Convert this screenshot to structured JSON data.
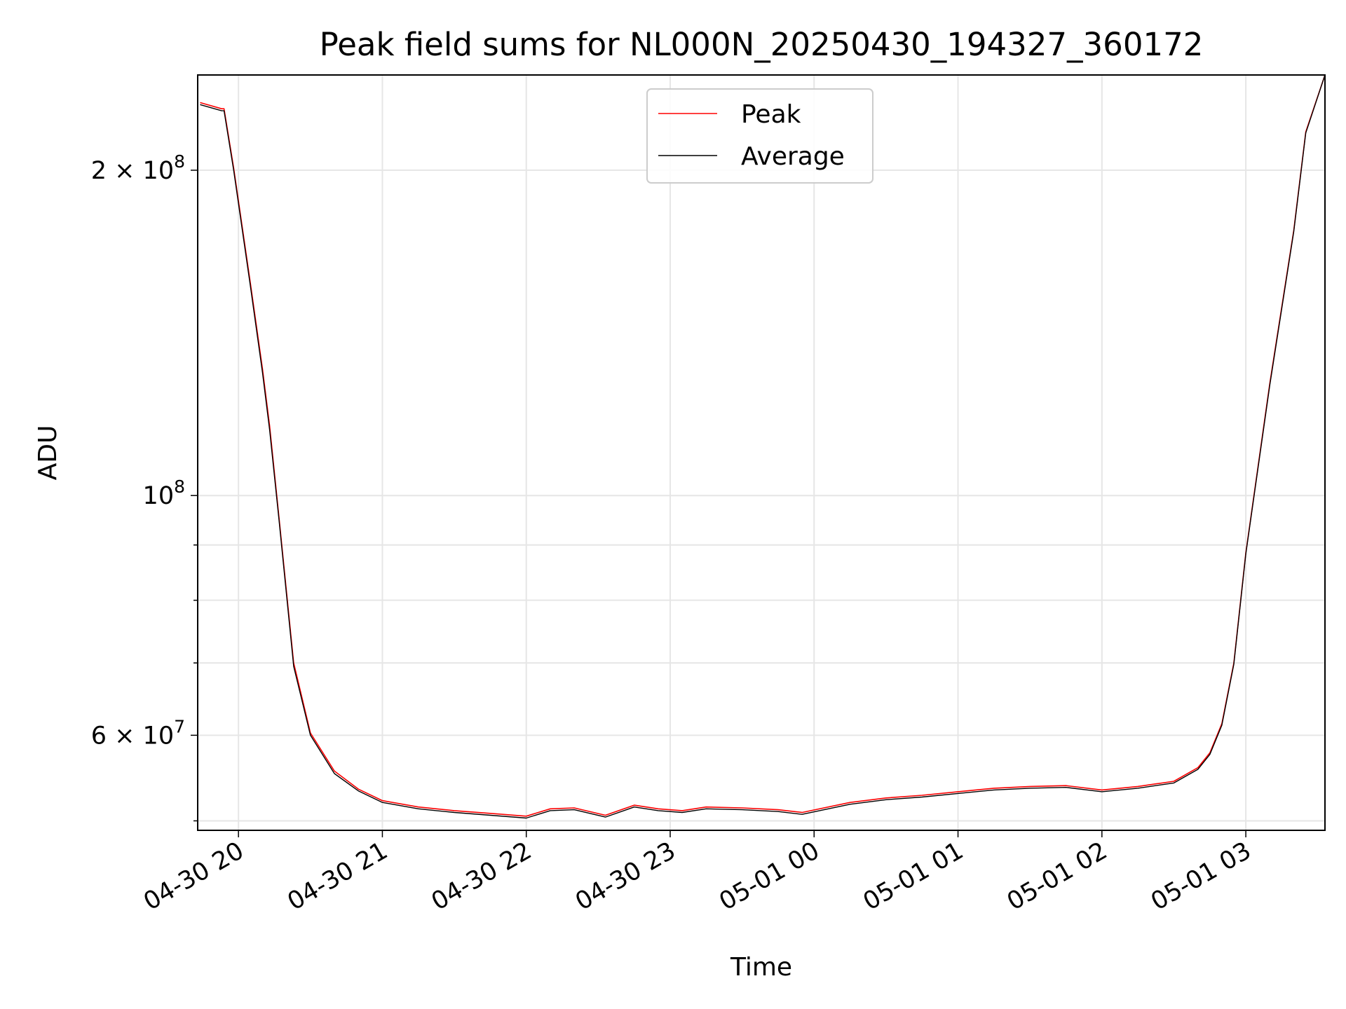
{
  "chart_data": {
    "type": "line",
    "title": "Peak field sums for NL000N_20250430_194327_360172",
    "xlabel": "Time",
    "ylabel": "ADU",
    "xlim": [
      "2025-04-30 19:43",
      "2025-05-01 03:33"
    ],
    "ylim": [
      49000000,
      245000000
    ],
    "yscale": "log",
    "grid": true,
    "legend_position": "top-center",
    "x_ticks": [
      "04-30 20",
      "04-30 21",
      "04-30 22",
      "04-30 23",
      "05-01 00",
      "05-01 01",
      "05-01 02",
      "05-01 03"
    ],
    "y_ticks": [
      {
        "value": 200000000,
        "mantissa": "2",
        "base": "10",
        "exp": "8"
      },
      {
        "value": 100000000,
        "mantissa": "",
        "base": "10",
        "exp": "8"
      },
      {
        "value": 60000000,
        "mantissa": "6",
        "base": "10",
        "exp": "7"
      }
    ],
    "x": [
      "2025-04-30 19:44",
      "2025-04-30 19:53",
      "2025-04-30 19:54",
      "2025-04-30 19:58",
      "2025-04-30 20:05",
      "2025-04-30 20:10",
      "2025-04-30 20:13",
      "2025-04-30 20:17",
      "2025-04-30 20:23",
      "2025-04-30 20:30",
      "2025-04-30 20:40",
      "2025-04-30 20:50",
      "2025-04-30 21:00",
      "2025-04-30 21:15",
      "2025-04-30 21:30",
      "2025-04-30 21:45",
      "2025-04-30 22:00",
      "2025-04-30 22:10",
      "2025-04-30 22:20",
      "2025-04-30 22:33",
      "2025-04-30 22:45",
      "2025-04-30 22:55",
      "2025-04-30 23:05",
      "2025-04-30 23:15",
      "2025-04-30 23:30",
      "2025-04-30 23:45",
      "2025-04-30 23:55",
      "2025-05-01 00:15",
      "2025-05-01 00:30",
      "2025-05-01 00:45",
      "2025-05-01 01:00",
      "2025-05-01 01:15",
      "2025-05-01 01:30",
      "2025-05-01 01:45",
      "2025-05-01 02:00",
      "2025-05-01 02:15",
      "2025-05-01 02:30",
      "2025-05-01 02:40",
      "2025-05-01 02:45",
      "2025-05-01 02:50",
      "2025-05-01 02:55",
      "2025-05-01 03:00",
      "2025-05-01 03:10",
      "2025-05-01 03:20",
      "2025-05-01 03:25",
      "2025-05-01 03:33"
    ],
    "series": [
      {
        "name": "Peak",
        "color": "#ff0000",
        "values": [
          231000000,
          228000000,
          228000000,
          201000000,
          157000000,
          131000000,
          116000000,
          95000000,
          70000000,
          60300000,
          55600000,
          53500000,
          52200000,
          51500000,
          51100000,
          50800000,
          50500000,
          51300000,
          51400000,
          50600000,
          51700000,
          51300000,
          51100000,
          51500000,
          51400000,
          51200000,
          50900000,
          52000000,
          52500000,
          52800000,
          53200000,
          53600000,
          53800000,
          53900000,
          53400000,
          53800000,
          54400000,
          56000000,
          57800000,
          61500000,
          70000000,
          88500000,
          127000000,
          176000000,
          217000000,
          245000000
        ]
      },
      {
        "name": "Average",
        "color": "#000000",
        "values": [
          230000000,
          227000000,
          227000000,
          200000000,
          156000000,
          130000000,
          115000000,
          94500000,
          69500000,
          60000000,
          55300000,
          53300000,
          52000000,
          51300000,
          50900000,
          50600000,
          50300000,
          51100000,
          51200000,
          50400000,
          51500000,
          51100000,
          50900000,
          51300000,
          51200000,
          51000000,
          50700000,
          51800000,
          52300000,
          52600000,
          53000000,
          53400000,
          53600000,
          53700000,
          53200000,
          53600000,
          54200000,
          55800000,
          57600000,
          61300000,
          69800000,
          88300000,
          126500000,
          175500000,
          216500000,
          245000000
        ]
      }
    ]
  }
}
